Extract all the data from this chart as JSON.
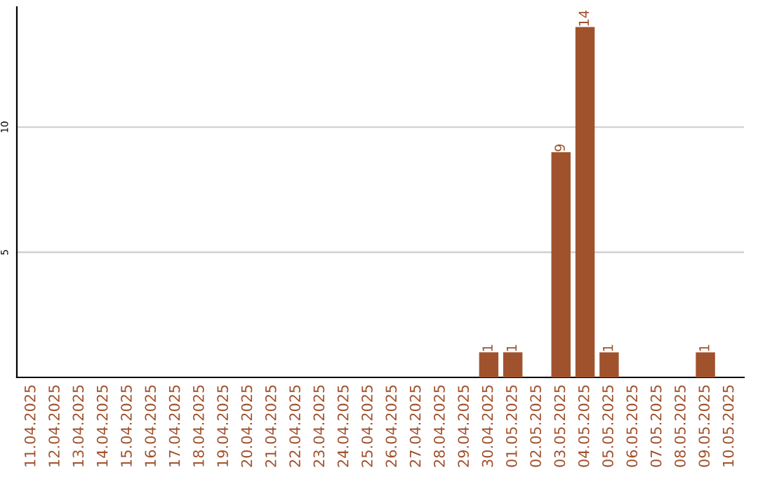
{
  "chart_data": {
    "type": "bar",
    "categories": [
      "11.04.2025",
      "12.04.2025",
      "13.04.2025",
      "14.04.2025",
      "15.04.2025",
      "16.04.2025",
      "17.04.2025",
      "18.04.2025",
      "19.04.2025",
      "20.04.2025",
      "21.04.2025",
      "22.04.2025",
      "23.04.2025",
      "24.04.2025",
      "25.04.2025",
      "26.04.2025",
      "27.04.2025",
      "28.04.2025",
      "29.04.2025",
      "30.04.2025",
      "01.05.2025",
      "02.05.2025",
      "03.05.2025",
      "04.05.2025",
      "05.05.2025",
      "06.05.2025",
      "07.05.2025",
      "08.05.2025",
      "09.05.2025",
      "10.05.2025"
    ],
    "values": [
      0,
      0,
      0,
      0,
      0,
      0,
      0,
      0,
      0,
      0,
      0,
      0,
      0,
      0,
      0,
      0,
      0,
      0,
      0,
      1,
      1,
      0,
      9,
      14,
      1,
      0,
      0,
      0,
      1,
      0
    ],
    "value_labels": [
      null,
      null,
      null,
      null,
      null,
      null,
      null,
      null,
      null,
      null,
      null,
      null,
      null,
      null,
      null,
      null,
      null,
      null,
      null,
      "1",
      "1",
      null,
      "9",
      "14",
      "1",
      null,
      null,
      null,
      "1",
      null
    ],
    "color": "#a0522d",
    "ylim": [
      0,
      14.8
    ],
    "yticks": [
      5,
      10
    ],
    "grid": "y",
    "legend": false
  }
}
